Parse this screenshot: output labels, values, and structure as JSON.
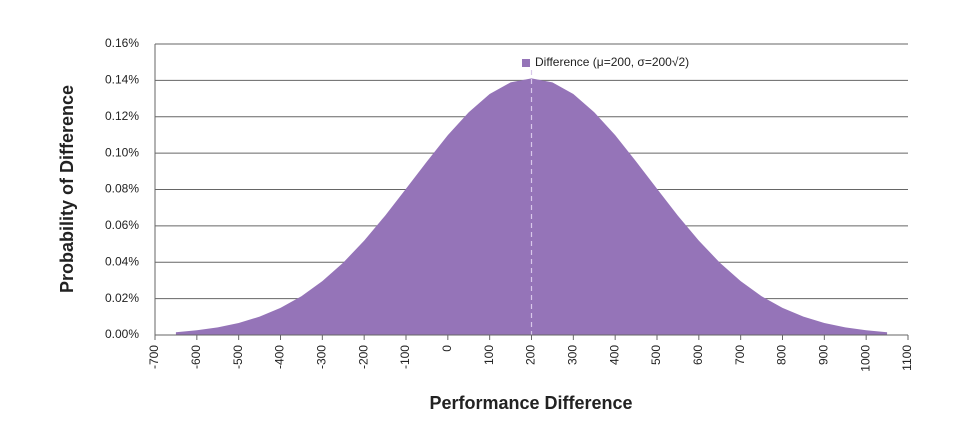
{
  "chart_data": {
    "type": "area",
    "xlabel": "Performance Difference",
    "ylabel": "Probability of Difference",
    "x": [
      -650,
      -600,
      -550,
      -500,
      -450,
      -400,
      -350,
      -300,
      -250,
      -200,
      -150,
      -100,
      -50,
      0,
      50,
      100,
      150,
      200,
      250,
      300,
      350,
      400,
      450,
      500,
      550,
      600,
      650,
      700,
      750,
      800,
      850,
      900,
      950,
      1000,
      1050
    ],
    "series": [
      {
        "name": "Difference (μ=200, σ=200√2)",
        "color": "#9574b8",
        "values": [
          0.0015,
          0.0026,
          0.0042,
          0.0066,
          0.0101,
          0.0149,
          0.0213,
          0.0296,
          0.0398,
          0.0519,
          0.0656,
          0.0804,
          0.0954,
          0.1099,
          0.1225,
          0.1325,
          0.1389,
          0.1411,
          0.1389,
          0.1325,
          0.1225,
          0.1099,
          0.0954,
          0.0804,
          0.0656,
          0.0519,
          0.0398,
          0.0296,
          0.0213,
          0.0149,
          0.0101,
          0.0066,
          0.0042,
          0.0026,
          0.0015
        ]
      }
    ],
    "vline_x": 200,
    "xlim": [
      -700,
      1100
    ],
    "xticks": [
      -700,
      -600,
      -500,
      -400,
      -300,
      -200,
      -100,
      0,
      100,
      200,
      300,
      400,
      500,
      600,
      700,
      800,
      900,
      1000,
      1100
    ],
    "ylim": [
      0,
      0.16
    ],
    "yticks": [
      {
        "value": 0,
        "label": "0.00%"
      },
      {
        "value": 0.02,
        "label": "0.02%"
      },
      {
        "value": 0.04,
        "label": "0.04%"
      },
      {
        "value": 0.06,
        "label": "0.06%"
      },
      {
        "value": 0.08,
        "label": "0.08%"
      },
      {
        "value": 0.1,
        "label": "0.10%"
      },
      {
        "value": 0.12,
        "label": "0.12%"
      },
      {
        "value": 0.14,
        "label": "0.14%"
      },
      {
        "value": 0.16,
        "label": "0.16%"
      }
    ],
    "grid": true,
    "legend": "top"
  }
}
